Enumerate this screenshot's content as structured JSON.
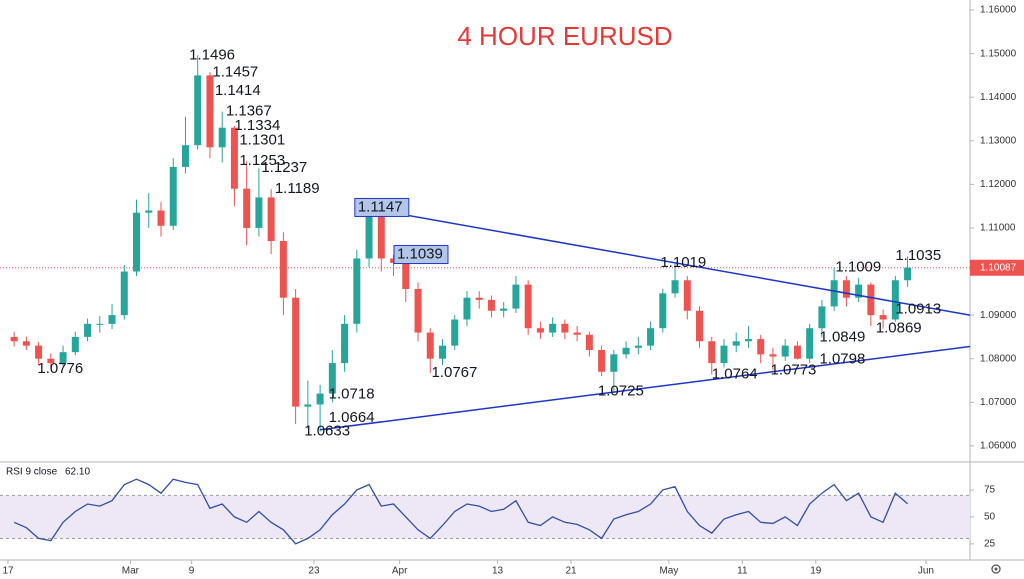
{
  "chart_data": [
    {
      "type": "candlestick",
      "title": "4 HOUR EURUSD",
      "title_color": "#e53935",
      "up_color": "#26a69a",
      "down_color": "#ef5350",
      "x": [
        0,
        1,
        2,
        3,
        4,
        5,
        6,
        7,
        8,
        9,
        10,
        11,
        12,
        13,
        14,
        15,
        16,
        17,
        18,
        19,
        20,
        21,
        22,
        23,
        24,
        25,
        26,
        27,
        28,
        29,
        30,
        31,
        32,
        33,
        34,
        35,
        36,
        37,
        38,
        39,
        40,
        41,
        42,
        43,
        44,
        45,
        46,
        47,
        48,
        49,
        50,
        51,
        52,
        53,
        54,
        55,
        56,
        57,
        58,
        59,
        60,
        61,
        62,
        63,
        64,
        65,
        66,
        67,
        68,
        69,
        70,
        71,
        72,
        73
      ],
      "open": [
        1.085,
        1.084,
        1.083,
        1.08,
        1.079,
        1.0815,
        1.085,
        1.088,
        1.088,
        1.09,
        1.1,
        1.1135,
        1.114,
        1.1105,
        1.124,
        1.129,
        1.145,
        1.1285,
        1.133,
        1.119,
        1.11,
        1.117,
        1.107,
        1.094,
        1.069,
        1.0695,
        1.072,
        1.079,
        1.088,
        1.103,
        1.114,
        1.103,
        1.102,
        1.096,
        1.086,
        1.08,
        1.083,
        1.089,
        1.094,
        1.0935,
        1.091,
        1.0915,
        1.097,
        1.087,
        1.086,
        1.088,
        1.086,
        1.0855,
        1.082,
        1.077,
        1.081,
        1.0825,
        1.083,
        1.087,
        1.095,
        1.098,
        1.091,
        1.084,
        1.079,
        1.083,
        1.084,
        1.0845,
        1.081,
        1.0805,
        1.083,
        1.08,
        1.087,
        1.092,
        1.098,
        1.094,
        1.097,
        1.09,
        1.089,
        1.098
      ],
      "high": [
        1.0862,
        1.0851,
        1.0838,
        1.0812,
        1.083,
        1.0862,
        1.0892,
        1.0898,
        1.0925,
        1.1015,
        1.1165,
        1.118,
        1.116,
        1.126,
        1.1355,
        1.1496,
        1.1457,
        1.1367,
        1.1334,
        1.1253,
        1.1237,
        1.1189,
        1.109,
        1.096,
        1.075,
        1.074,
        1.082,
        1.09,
        1.105,
        1.1147,
        1.1145,
        1.1039,
        1.103,
        1.0975,
        1.087,
        1.0845,
        1.09,
        1.0955,
        1.0955,
        1.0945,
        1.093,
        1.099,
        1.098,
        1.0885,
        1.0895,
        1.089,
        1.0875,
        1.0862,
        1.083,
        1.082,
        1.084,
        1.085,
        1.0885,
        1.096,
        1.1019,
        1.099,
        1.092,
        1.085,
        1.0845,
        1.086,
        1.0875,
        1.0855,
        1.0825,
        1.0845,
        1.084,
        1.088,
        1.0935,
        1.1009,
        1.099,
        1.0985,
        1.0975,
        1.0913,
        1.099,
        1.1035
      ],
      "low": [
        1.0828,
        1.082,
        1.0785,
        1.0776,
        1.0782,
        1.0808,
        1.084,
        1.086,
        1.0868,
        1.089,
        1.099,
        1.11,
        1.108,
        1.1095,
        1.1225,
        1.128,
        1.126,
        1.125,
        1.115,
        1.106,
        1.108,
        1.104,
        1.09,
        1.065,
        1.064,
        1.0633,
        1.07,
        1.077,
        1.086,
        1.101,
        1.1,
        1.099,
        1.093,
        1.084,
        1.0767,
        1.0785,
        1.082,
        1.0875,
        1.0915,
        1.0895,
        1.0895,
        1.0905,
        1.0855,
        1.0845,
        1.085,
        1.0845,
        1.084,
        1.0805,
        1.076,
        1.0725,
        1.08,
        1.081,
        1.082,
        1.086,
        1.094,
        1.089,
        1.0825,
        1.0764,
        1.078,
        1.0815,
        1.0825,
        1.079,
        1.0773,
        1.0795,
        1.0798,
        1.079,
        1.0849,
        1.091,
        1.092,
        1.093,
        1.0875,
        1.0869,
        1.0885,
        1.0965
      ],
      "close": [
        1.084,
        1.083,
        1.08,
        1.079,
        1.0815,
        1.085,
        1.088,
        1.088,
        1.09,
        1.1,
        1.1135,
        1.114,
        1.1105,
        1.124,
        1.129,
        1.145,
        1.1285,
        1.133,
        1.119,
        1.11,
        1.117,
        1.107,
        1.094,
        1.069,
        1.0695,
        1.072,
        1.079,
        1.088,
        1.103,
        1.114,
        1.103,
        1.102,
        1.096,
        1.086,
        1.08,
        1.083,
        1.089,
        1.094,
        1.0935,
        1.091,
        1.0915,
        1.097,
        1.087,
        1.086,
        1.088,
        1.086,
        1.0855,
        1.082,
        1.077,
        1.081,
        1.0825,
        1.083,
        1.087,
        1.095,
        1.098,
        1.091,
        1.084,
        1.079,
        1.083,
        1.084,
        1.0845,
        1.081,
        1.0805,
        1.083,
        1.08,
        1.087,
        1.092,
        1.098,
        1.094,
        1.097,
        1.09,
        1.089,
        1.098,
        1.1009
      ],
      "xlim": [
        0,
        78.6
      ],
      "xticks": [
        {
          "value": 0,
          "label": "17"
        },
        {
          "value": 10,
          "label": "Mar"
        },
        {
          "value": 15,
          "label": "9"
        },
        {
          "value": 25,
          "label": "23"
        },
        {
          "value": 32,
          "label": "Apr"
        },
        {
          "value": 40,
          "label": "13"
        },
        {
          "value": 46,
          "label": "21"
        },
        {
          "value": 54,
          "label": "May"
        },
        {
          "value": 60,
          "label": "11"
        },
        {
          "value": 66,
          "label": "19"
        },
        {
          "value": 75,
          "label": "Jun"
        }
      ],
      "ylim": [
        1.0563,
        1.1623
      ],
      "yticks": [
        {
          "value": 1.06,
          "label": "1.06000"
        },
        {
          "value": 1.07,
          "label": "1.07000"
        },
        {
          "value": 1.08,
          "label": "1.08000"
        },
        {
          "value": 1.09,
          "label": "1.09000"
        },
        {
          "value": 1.1,
          "label": "1.10000"
        },
        {
          "value": 1.11,
          "label": "1.11000"
        },
        {
          "value": 1.12,
          "label": "1.12000"
        },
        {
          "value": 1.13,
          "label": "1.13000"
        },
        {
          "value": 1.14,
          "label": "1.14000"
        },
        {
          "value": 1.15,
          "label": "1.15000"
        },
        {
          "value": 1.16,
          "label": "1.16000"
        }
      ],
      "last_price": 1.10087,
      "last_price_color": "#ef5350",
      "trendlines": [
        {
          "x": [
            29,
            78.6
          ],
          "y": [
            1.1147,
            1.09
          ],
          "color": "#1e36c8"
        },
        {
          "x": [
            25.5,
            78.6
          ],
          "y": [
            1.0637,
            1.0828
          ],
          "color": "#1e36c8"
        }
      ],
      "annotations": [
        {
          "x": 2.4,
          "y": 1.0776
        },
        {
          "x": 14.8,
          "y": 1.1496
        },
        {
          "x": 16.7,
          "y": 1.1457
        },
        {
          "x": 16.9,
          "y": 1.1414
        },
        {
          "x": 17.8,
          "y": 1.1367
        },
        {
          "x": 18.5,
          "y": 1.1334
        },
        {
          "x": 18.9,
          "y": 1.1301
        },
        {
          "x": 18.9,
          "y": 1.1253
        },
        {
          "x": 20.7,
          "y": 1.1237
        },
        {
          "x": 21.8,
          "y": 1.1189
        },
        {
          "x": 26.2,
          "y": 1.0718
        },
        {
          "x": 26.2,
          "y": 1.0664
        },
        {
          "x": 24.2,
          "y": 1.0633
        },
        {
          "x": 34.6,
          "y": 1.0767
        },
        {
          "x": 48.2,
          "y": 1.0725
        },
        {
          "x": 53.3,
          "y": 1.1019
        },
        {
          "x": 57.5,
          "y": 1.0764
        },
        {
          "x": 62.3,
          "y": 1.0773
        },
        {
          "x": 66.3,
          "y": 1.0798
        },
        {
          "x": 66.3,
          "y": 1.0849
        },
        {
          "x": 67.6,
          "y": 1.1009
        },
        {
          "x": 72.5,
          "y": 1.1035
        },
        {
          "x": 72.5,
          "y": 1.0913
        },
        {
          "x": 70.9,
          "y": 1.0869
        }
      ],
      "boxed_annotations": [
        {
          "x": 28.5,
          "y": 1.1147
        },
        {
          "x": 31.7,
          "y": 1.1039
        }
      ]
    },
    {
      "type": "line",
      "name": "RSI 9 close",
      "color": "#2f4fa8",
      "current": {
        "value": 62.1,
        "label": "62.10"
      },
      "x": [
        0,
        1,
        2,
        3,
        4,
        5,
        6,
        7,
        8,
        9,
        10,
        11,
        12,
        13,
        14,
        15,
        16,
        17,
        18,
        19,
        20,
        21,
        22,
        23,
        24,
        25,
        26,
        27,
        28,
        29,
        30,
        31,
        32,
        33,
        34,
        35,
        36,
        37,
        38,
        39,
        40,
        41,
        42,
        43,
        44,
        45,
        46,
        47,
        48,
        49,
        50,
        51,
        52,
        53,
        54,
        55,
        56,
        57,
        58,
        59,
        60,
        61,
        62,
        63,
        64,
        65,
        66,
        67,
        68,
        69,
        70,
        71,
        72,
        73
      ],
      "values": [
        45,
        40,
        30,
        28,
        45,
        55,
        62,
        60,
        65,
        80,
        85,
        80,
        72,
        85,
        82,
        80,
        58,
        62,
        50,
        45,
        55,
        45,
        38,
        25,
        30,
        38,
        52,
        62,
        75,
        80,
        60,
        62,
        50,
        38,
        30,
        42,
        55,
        62,
        60,
        55,
        57,
        65,
        45,
        42,
        50,
        45,
        43,
        38,
        30,
        48,
        52,
        55,
        62,
        75,
        78,
        55,
        42,
        35,
        48,
        52,
        55,
        45,
        44,
        50,
        42,
        62,
        72,
        80,
        65,
        72,
        50,
        45,
        72,
        62.1
      ],
      "xlim": [
        0,
        78.6
      ],
      "ylim": [
        10,
        100
      ],
      "yticks": [
        25,
        50,
        75
      ],
      "band": [
        30,
        70
      ],
      "band_color": "#ede7f6"
    }
  ]
}
